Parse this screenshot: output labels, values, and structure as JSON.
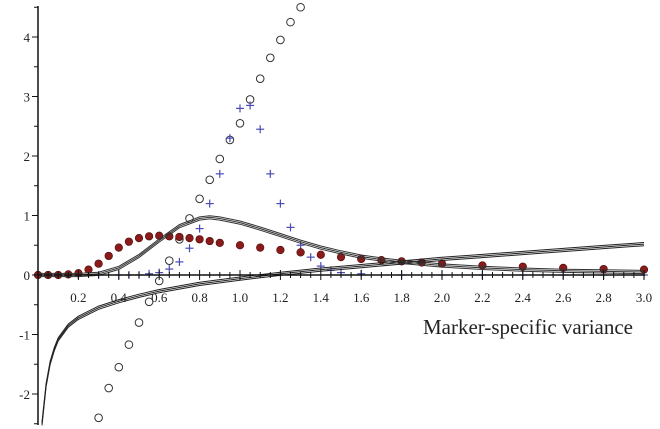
{
  "chart_data": {
    "type": "line",
    "title": "",
    "xlabel": "Marker-specific variance",
    "ylabel": "",
    "xlim": [
      0.0,
      3.0
    ],
    "ylim": [
      -2.55,
      4.5
    ],
    "grid": false,
    "legend": "none",
    "x_ticks": [
      "0.2",
      "0.4",
      "0.6",
      "0.8",
      "1.0",
      "1.2",
      "1.4",
      "1.6",
      "1.8",
      "2.0",
      "2.2",
      "2.4",
      "2.6",
      "2.8",
      "3.0"
    ],
    "y_ticks": [
      "-2",
      "-1",
      "0",
      "1",
      "2",
      "3",
      "4"
    ],
    "series": [
      {
        "marker": "open-circle",
        "color": "#333333",
        "x": [
          0.3,
          0.35,
          0.4,
          0.45,
          0.5,
          0.55,
          0.6,
          0.65,
          0.7,
          0.75,
          0.8,
          0.85,
          0.9,
          0.95,
          1.0,
          1.05,
          1.1,
          1.15,
          1.2,
          1.25,
          1.3
        ],
        "y": [
          -2.4,
          -1.9,
          -1.55,
          -1.17,
          -0.8,
          -0.45,
          -0.1,
          0.24,
          0.6,
          0.95,
          1.28,
          1.6,
          1.95,
          2.27,
          2.55,
          2.95,
          3.3,
          3.65,
          3.95,
          4.25,
          4.5
        ]
      },
      {
        "marker": "plus",
        "color": "#4a4ab8",
        "x": [
          0.0,
          0.1,
          0.2,
          0.3,
          0.4,
          0.45,
          0.5,
          0.55,
          0.6,
          0.65,
          0.7,
          0.75,
          0.8,
          0.85,
          0.9,
          0.95,
          1.0,
          1.05,
          1.1,
          1.15,
          1.2,
          1.25,
          1.3,
          1.35,
          1.4,
          1.45,
          1.5,
          1.6,
          1.8,
          2.0,
          2.2,
          2.4,
          2.6,
          2.8,
          3.0
        ],
        "y": [
          0,
          0,
          0,
          0,
          0,
          0,
          0,
          0.02,
          0.04,
          0.1,
          0.22,
          0.45,
          0.78,
          1.2,
          1.7,
          2.3,
          2.8,
          2.85,
          2.45,
          1.7,
          1.2,
          0.8,
          0.5,
          0.3,
          0.15,
          0.08,
          0.04,
          0.02,
          0,
          0,
          0,
          0,
          0,
          0,
          0
        ]
      },
      {
        "marker": "filled-circle",
        "color": "#8b1a1a",
        "x": [
          0.0,
          0.05,
          0.1,
          0.15,
          0.2,
          0.25,
          0.3,
          0.35,
          0.4,
          0.45,
          0.5,
          0.55,
          0.6,
          0.65,
          0.7,
          0.75,
          0.8,
          0.85,
          0.9,
          1.0,
          1.1,
          1.2,
          1.3,
          1.4,
          1.5,
          1.6,
          1.7,
          1.8,
          1.9,
          2.0,
          2.2,
          2.4,
          2.6,
          2.8,
          3.0
        ],
        "y": [
          0,
          0,
          0,
          0.01,
          0.03,
          0.09,
          0.19,
          0.32,
          0.46,
          0.56,
          0.62,
          0.65,
          0.66,
          0.65,
          0.64,
          0.62,
          0.6,
          0.57,
          0.54,
          0.5,
          0.46,
          0.42,
          0.38,
          0.34,
          0.3,
          0.27,
          0.25,
          0.23,
          0.21,
          0.19,
          0.16,
          0.14,
          0.12,
          0.1,
          0.09
        ]
      },
      {
        "marker": "none",
        "color": "#333333",
        "x": [
          0.0,
          0.2,
          0.3,
          0.4,
          0.5,
          0.6,
          0.7,
          0.8,
          0.85,
          0.9,
          1.0,
          1.1,
          1.2,
          1.3,
          1.4,
          1.5,
          1.6,
          1.7,
          1.8,
          2.0,
          2.2,
          2.4,
          2.6,
          2.8,
          3.0
        ],
        "y": [
          0,
          0,
          0.02,
          0.12,
          0.32,
          0.58,
          0.82,
          0.95,
          0.97,
          0.95,
          0.88,
          0.78,
          0.67,
          0.56,
          0.46,
          0.38,
          0.31,
          0.26,
          0.22,
          0.16,
          0.12,
          0.09,
          0.07,
          0.06,
          0.05
        ]
      },
      {
        "marker": "none",
        "color": "#222222",
        "x": [
          0.02,
          0.04,
          0.06,
          0.08,
          0.1,
          0.15,
          0.2,
          0.3,
          0.4,
          0.5,
          0.6,
          0.8,
          1.0,
          1.2,
          1.4,
          1.6,
          1.8,
          2.0,
          2.2,
          2.4,
          2.6,
          2.8,
          3.0
        ],
        "y": [
          -2.5,
          -1.85,
          -1.48,
          -1.25,
          -1.08,
          -0.85,
          -0.72,
          -0.55,
          -0.44,
          -0.35,
          -0.27,
          -0.15,
          -0.06,
          0.02,
          0.09,
          0.15,
          0.21,
          0.27,
          0.32,
          0.37,
          0.42,
          0.47,
          0.52
        ]
      }
    ]
  }
}
